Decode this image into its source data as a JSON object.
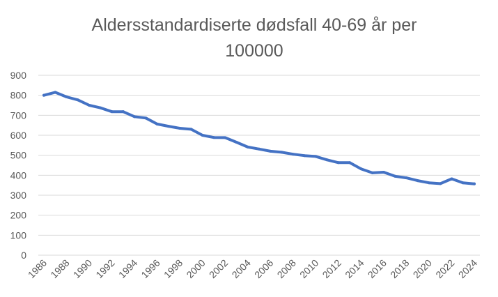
{
  "chart_data": {
    "type": "line",
    "title_line1": "Aldersstandardiserte dødsfall 40-69 år per",
    "title_line2": "100000",
    "xlabel": "",
    "ylabel": "",
    "ylim": [
      0,
      900
    ],
    "yticks": [
      "0",
      "100",
      "200",
      "300",
      "400",
      "500",
      "600",
      "700",
      "800",
      "900"
    ],
    "xlim": [
      1986,
      2024
    ],
    "xticks": [
      "1986",
      "1988",
      "1990",
      "1992",
      "1994",
      "1996",
      "1998",
      "2000",
      "2002",
      "2004",
      "2006",
      "2008",
      "2010",
      "2012",
      "2014",
      "2016",
      "2018",
      "2020",
      "2022",
      "2024"
    ],
    "grid": "horizontal",
    "legend": "none",
    "line_color": "#4472C4",
    "series": [
      {
        "x": [
          1986,
          1987,
          1988,
          1989,
          1990,
          1991,
          1992,
          1993,
          1994,
          1995,
          1996,
          1997,
          1998,
          1999,
          2000,
          2001,
          2002,
          2003,
          2004,
          2005,
          2006,
          2007,
          2008,
          2009,
          2010,
          2011,
          2012,
          2013,
          2014,
          2015,
          2016,
          2017,
          2018,
          2019,
          2020,
          2021,
          2022,
          2023,
          2024
        ],
        "values": [
          800,
          815,
          792,
          777,
          750,
          737,
          718,
          718,
          693,
          686,
          656,
          645,
          635,
          630,
          600,
          589,
          588,
          565,
          541,
          531,
          520,
          515,
          505,
          498,
          494,
          477,
          463,
          463,
          432,
          412,
          415,
          395,
          387,
          373,
          362,
          358,
          382,
          362,
          357
        ]
      }
    ]
  }
}
